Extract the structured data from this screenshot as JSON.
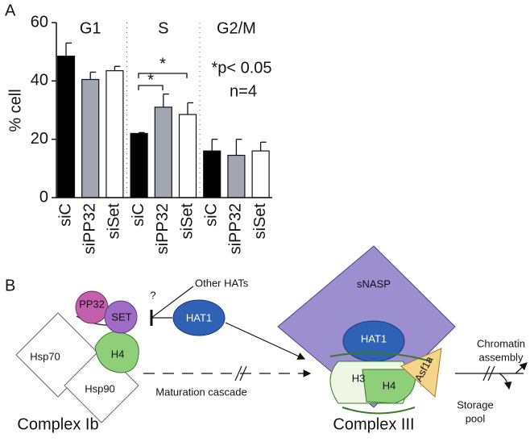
{
  "chart_data": {
    "type": "bar",
    "panel_label": "A",
    "y_label": "% cell",
    "groups": [
      "G1",
      "S",
      "G2/M"
    ],
    "categories": [
      "siC",
      "siPP32",
      "siSet",
      "siC",
      "siPP32",
      "siSet",
      "siC",
      "siPP32",
      "siSet"
    ],
    "values": [
      48.5,
      40.5,
      43.5,
      22,
      31,
      28.5,
      16,
      14.5,
      16
    ],
    "errors": [
      4.5,
      2.5,
      1.5,
      0.3,
      4.5,
      4,
      4,
      5.5,
      3
    ],
    "bar_colors": [
      "#000000",
      "#a2a6b0",
      "#ffffff"
    ],
    "ylim": [
      0,
      60
    ],
    "yticks": [
      0,
      20,
      40,
      60
    ],
    "annotations": [
      "*",
      "*",
      "*p< 0.05",
      "n=4"
    ]
  },
  "diagram": {
    "panel_label": "B",
    "pp32": "PP32",
    "set": "SET",
    "question": "?",
    "other_hats": "Other HATs",
    "hat1_left": "HAT1",
    "hsp70": "Hsp70",
    "h4_left": "H4",
    "hsp90": "Hsp90",
    "complex_ib": "Complex Ib",
    "maturation": "Maturation cascade",
    "snasp": "sNASP",
    "hat1_right": "HAT1",
    "h3": "H3",
    "h4_right": "H4",
    "asf1a": "Asf1a",
    "complex_iii": "Complex III",
    "chromatin": [
      "Chromatin",
      "assembly"
    ],
    "storage": [
      "Storage",
      "pool"
    ]
  }
}
